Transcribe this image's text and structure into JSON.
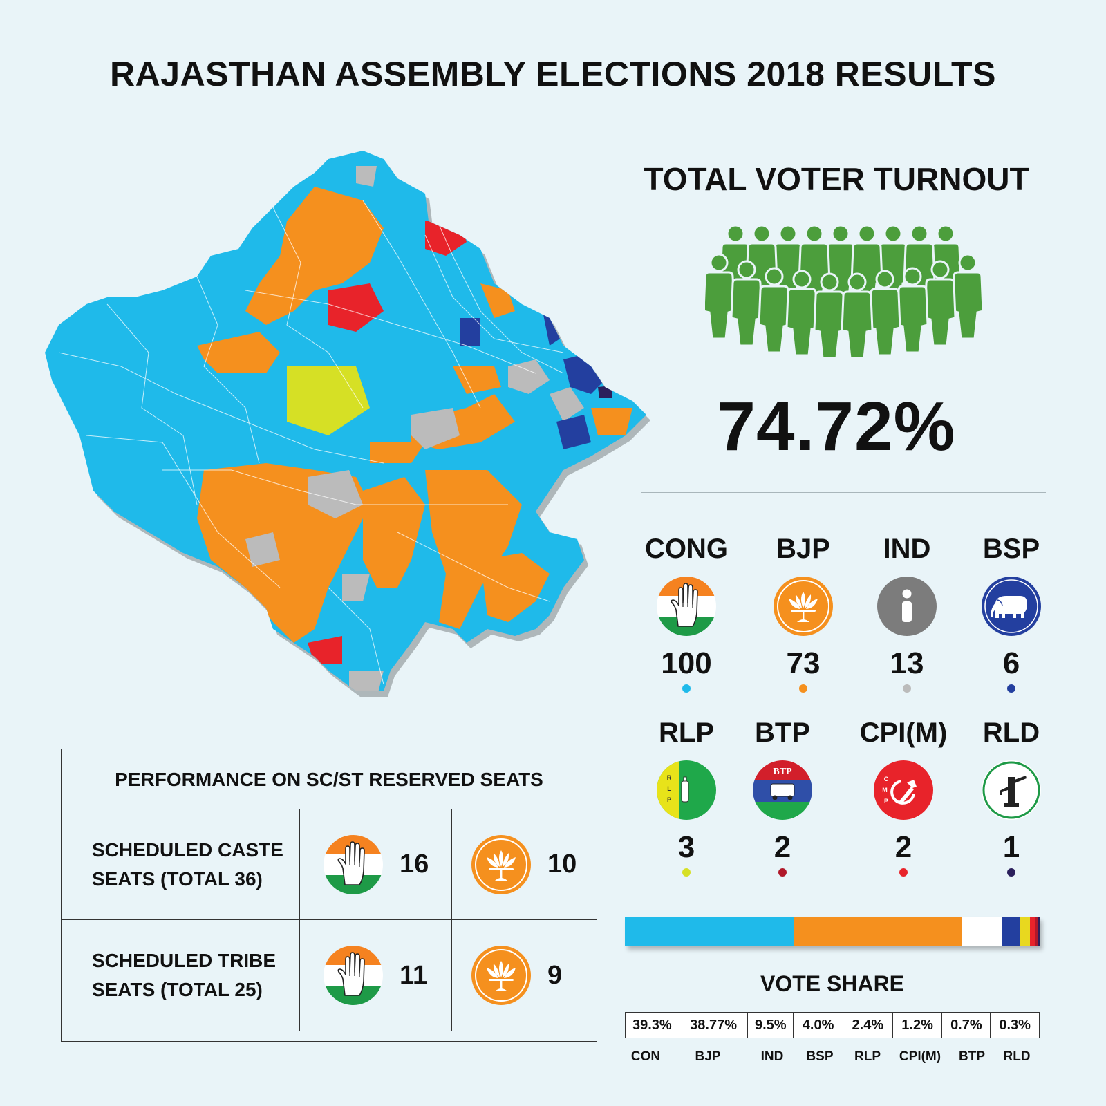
{
  "title": "RAJASTHAN ASSEMBLY ELECTIONS 2018 RESULTS",
  "turnout": {
    "title": "TOTAL VOTER TURNOUT",
    "value": "74.72%"
  },
  "colors": {
    "CONG": "#1fbaea",
    "BJP": "#f5901e",
    "IND": "#bbbbbb",
    "BSP": "#233f9f",
    "RLP": "#d6e025",
    "BTP": "#b0182a",
    "CPIM": "#e8232a",
    "RLD": "#2b1f5c",
    "crowd": "#4c9e3c"
  },
  "parties_row1": [
    {
      "code": "CONG",
      "seats": "100",
      "icon": "hand-icon",
      "dot": "#1fbaea"
    },
    {
      "code": "BJP",
      "seats": "73",
      "icon": "lotus-icon",
      "dot": "#f5901e"
    },
    {
      "code": "IND",
      "seats": "13",
      "icon": "info-icon",
      "dot": "#bbbbbb"
    },
    {
      "code": "BSP",
      "seats": "6",
      "icon": "elephant-icon",
      "dot": "#233f9f"
    }
  ],
  "parties_row2": [
    {
      "code": "RLP",
      "seats": "3",
      "icon": "rlp-bottle-icon",
      "dot": "#d6e025",
      "emblem_text": "RLP"
    },
    {
      "code": "BTP",
      "seats": "2",
      "icon": "btp-autorickshaw-icon",
      "dot": "#b0182a",
      "emblem_text": "BTP"
    },
    {
      "code": "CPI(M)",
      "seats": "2",
      "icon": "hammer-sickle-icon",
      "dot": "#e8232a",
      "emblem_text": "CMP"
    },
    {
      "code": "RLD",
      "seats": "1",
      "icon": "handpump-icon",
      "dot": "#2b1f5c"
    }
  ],
  "vote_share": {
    "title": "VOTE SHARE",
    "values": [
      "39.3%",
      "38.77%",
      "9.5%",
      "4.0%",
      "2.4%",
      "1.2%",
      "0.7%",
      "0.3%"
    ],
    "labels": [
      "CON",
      "BJP",
      "IND",
      "BSP",
      "RLP",
      "CPI(M)",
      "BTP",
      "RLD"
    ],
    "bar": [
      {
        "value": 39.3,
        "color": "#1fbaea"
      },
      {
        "value": 38.77,
        "color": "#f5901e"
      },
      {
        "value": 9.5,
        "color": "#ffffff"
      },
      {
        "value": 4.0,
        "color": "#233f9f"
      },
      {
        "value": 2.4,
        "color": "#e8d81f"
      },
      {
        "value": 1.2,
        "color": "#e8232a"
      },
      {
        "value": 0.7,
        "color": "#b0182a"
      },
      {
        "value": 0.3,
        "color": "#2b1f5c"
      }
    ]
  },
  "reserved": {
    "title": "PERFORMANCE ON SC/ST RESERVED SEATS",
    "rows": [
      {
        "label_line1": "SCHEDULED CASTE",
        "label_line2": "SEATS (TOTAL 36)",
        "cong": "16",
        "bjp": "10"
      },
      {
        "label_line1": "SCHEDULED TRIBE",
        "label_line2": "SEATS (TOTAL 25)",
        "cong": "11",
        "bjp": "9"
      }
    ]
  }
}
